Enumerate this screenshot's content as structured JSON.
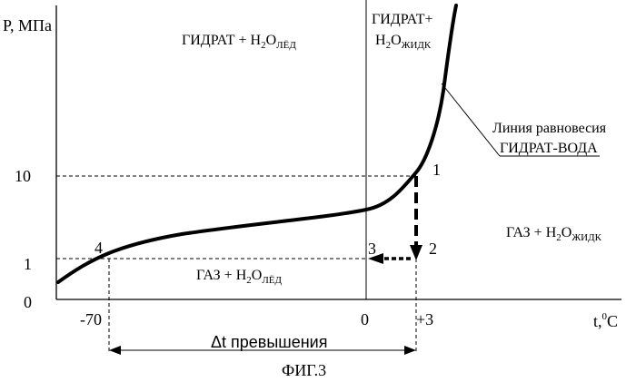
{
  "axes": {
    "y_label": "P, МПа",
    "x_label": "t,",
    "x_label_superscript": "0",
    "x_label_unit": "C",
    "y_ticks": [
      "10",
      "1",
      "0"
    ],
    "x_ticks": [
      "-70",
      "0",
      "+3"
    ]
  },
  "regions": {
    "hydrate_ice": {
      "base": "ГИДРАТ + H",
      "sub1": "2",
      "mid": "O",
      "sub2": "ЛЁД"
    },
    "hydrate_liquid": {
      "line1": "ГИДРАТ+",
      "base": "H",
      "sub1": "2",
      "mid": "O",
      "sub2": "ЖИДК"
    },
    "gas_liquid": {
      "base": "ГАЗ + H",
      "sub1": "2",
      "mid": "O",
      "sub2": "ЖИДК"
    },
    "gas_ice": {
      "base": "ГАЗ + H",
      "sub1": "2",
      "mid": "O",
      "sub2": "ЛЁД"
    }
  },
  "equilibrium_label": {
    "line1": "Линия равновесия",
    "line2": "ГИДРАТ-ВОДА"
  },
  "points": {
    "p1": "1",
    "p2": "2",
    "p3": "3",
    "p4": "4"
  },
  "delta_label": "Δt превышения",
  "caption": "ФИГ.3",
  "colors": {
    "ink": "#000000",
    "background": "#ffffff"
  }
}
